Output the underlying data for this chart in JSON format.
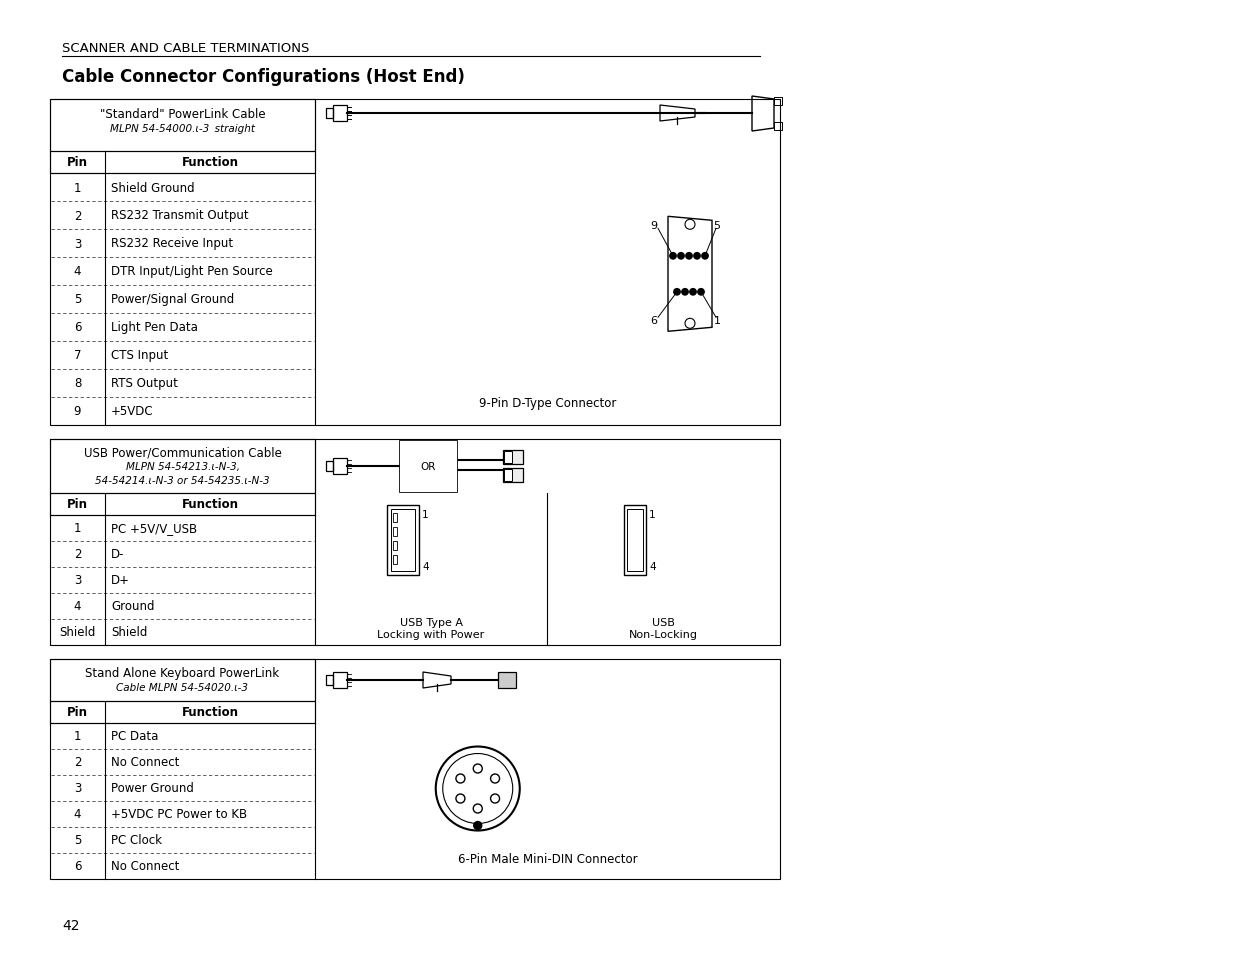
{
  "page_title": "SCANNER AND CABLE TERMINATIONS",
  "section_title": "Cable Connector Configurations (Host End)",
  "table1_header_left": "\"Standard\" PowerLink Cable",
  "table1_header_mlpn": "MLPN 54-54000.x-3 straight",
  "table1_pins": [
    [
      "1",
      "Shield Ground"
    ],
    [
      "2",
      "RS232 Transmit Output"
    ],
    [
      "3",
      "RS232 Receive Input"
    ],
    [
      "4",
      "DTR Input/Light Pen Source"
    ],
    [
      "5",
      "Power/Signal Ground"
    ],
    [
      "6",
      "Light Pen Data"
    ],
    [
      "7",
      "CTS Input"
    ],
    [
      "8",
      "RTS Output"
    ],
    [
      "9",
      "+5VDC"
    ]
  ],
  "table1_connector_label": "9-Pin D-Type Connector",
  "table2_header_line1": "USB Power/Communication Cable",
  "table2_header_line2": "MLPN 54-54213.x-N-3,",
  "table2_header_line3": "54-54214.x-N-3 or 54-54235.x-N-3",
  "table2_pins": [
    [
      "1",
      "PC +5V/V_USB"
    ],
    [
      "2",
      "D-"
    ],
    [
      "3",
      "D+"
    ],
    [
      "4",
      "Ground"
    ],
    [
      "Shield",
      "Shield"
    ]
  ],
  "table2_usb_locking_label1": "USB Type A",
  "table2_usb_locking_label2": "Locking with Power",
  "table2_usb_nonlocking_label1": "USB",
  "table2_usb_nonlocking_label2": "Non-Locking",
  "table3_header_line1": "Stand Alone Keyboard PowerLink",
  "table3_header_line2": "Cable MLPN 54-54020.x-3",
  "table3_pins": [
    [
      "1",
      "PC Data"
    ],
    [
      "2",
      "No Connect"
    ],
    [
      "3",
      "Power Ground"
    ],
    [
      "4",
      "+5VDC PC Power to KB"
    ],
    [
      "5",
      "PC Clock"
    ],
    [
      "6",
      "No Connect"
    ]
  ],
  "table3_connector_label": "6-Pin Male Mini-DIN Connector",
  "page_number": "42",
  "bg_color": "#ffffff"
}
